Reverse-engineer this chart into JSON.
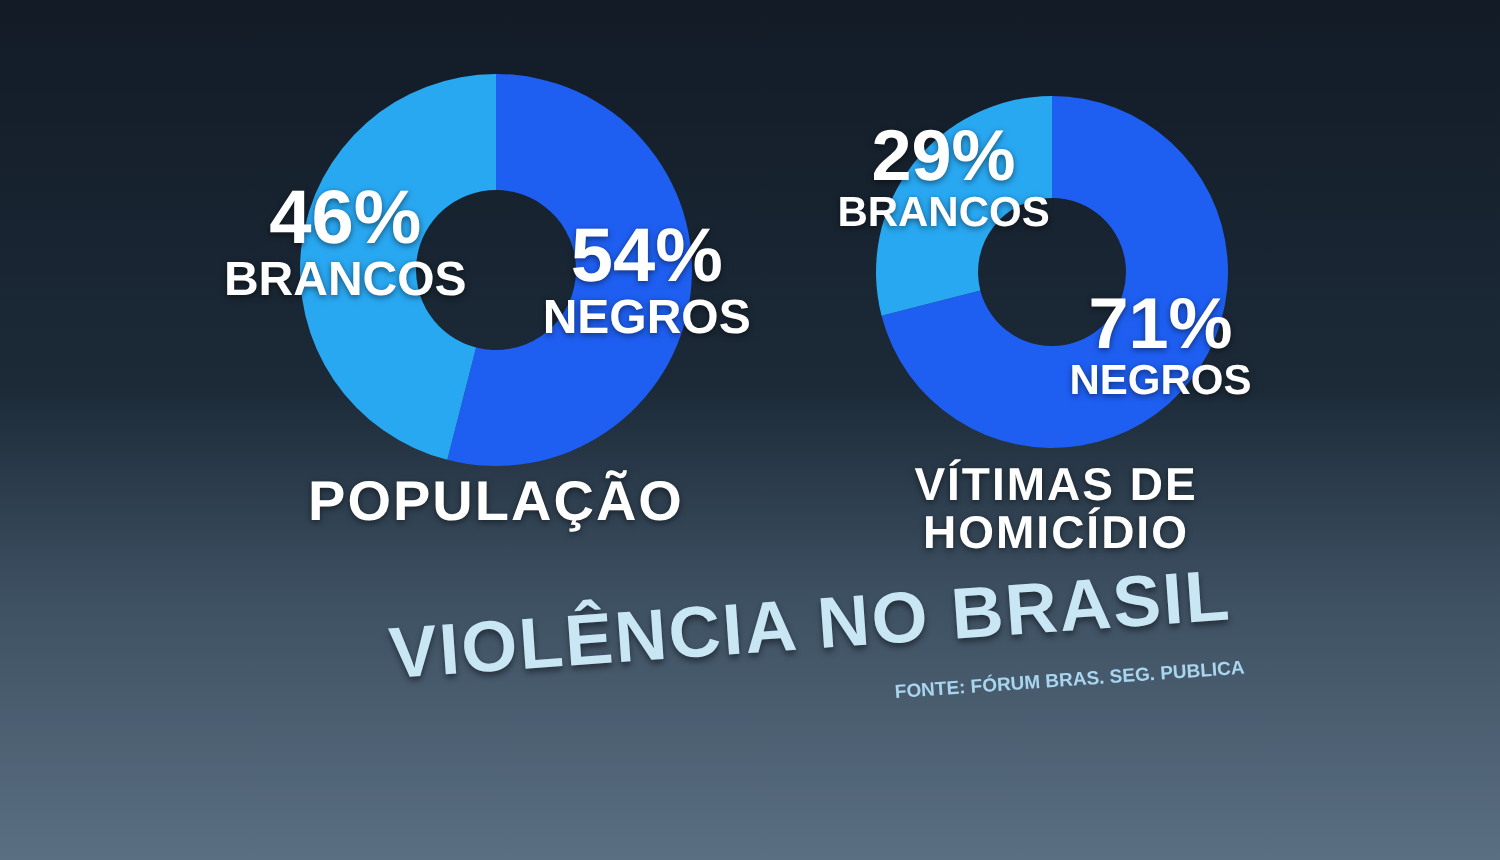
{
  "chart_data": [
    {
      "type": "donut",
      "title": "POPULAÇÃO",
      "categories": [
        "NEGROS",
        "BRANCOS"
      ],
      "values": [
        54,
        46
      ],
      "colors": [
        "#1e5ff2",
        "#29a8f2"
      ],
      "value_labels": [
        "54%",
        "46%"
      ]
    },
    {
      "type": "donut",
      "title": "VÍTIMAS DE HOMICÍDIO",
      "categories": [
        "NEGROS",
        "BRANCOS"
      ],
      "values": [
        71,
        29
      ],
      "colors": [
        "#1e5ff2",
        "#29a8f2"
      ],
      "value_labels": [
        "71%",
        "29%"
      ]
    },
    {
      "type": "other",
      "title": "VIOLÊNCIA NO BRASIL",
      "annotations": [
        "FONTE: FÓRUM BRAS. SEG. PUBLICA"
      ]
    }
  ]
}
